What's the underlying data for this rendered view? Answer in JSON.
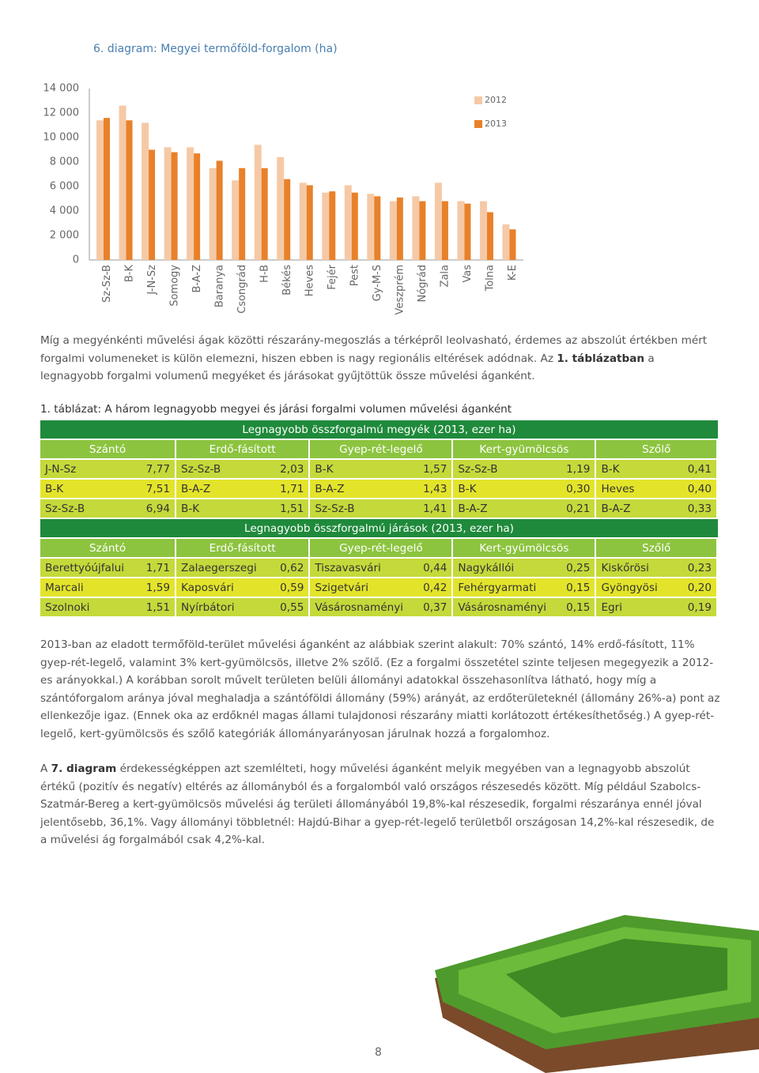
{
  "chart_data": {
    "type": "bar",
    "title": "6. diagram: Megyei termőföld-forgalom (ha)",
    "categories": [
      "Sz-Sz-B",
      "B-K",
      "J-N-Sz",
      "Somogy",
      "B-A-Z",
      "Baranya",
      "Csongrád",
      "H-B",
      "Békés",
      "Heves",
      "Fejér",
      "Pest",
      "Gy-M-S",
      "Veszprém",
      "Nógrád",
      "Zala",
      "Vas",
      "Tolna",
      "K-E"
    ],
    "series": [
      {
        "name": "2012",
        "color": "#f6c9a6",
        "values": [
          11400,
          12600,
          11200,
          9200,
          9200,
          7500,
          6500,
          9400,
          8400,
          6300,
          5500,
          6100,
          5400,
          4800,
          5200,
          6300,
          4800,
          4800,
          2900
        ]
      },
      {
        "name": "2013",
        "color": "#e8812a",
        "values": [
          11600,
          11400,
          9000,
          8800,
          8700,
          8100,
          7500,
          7500,
          6600,
          6100,
          5600,
          5500,
          5200,
          5100,
          4800,
          4800,
          4600,
          3900,
          2500
        ]
      }
    ],
    "ylim": [
      0,
      14000
    ],
    "yticks": [
      0,
      {
        "value": 2000,
        "label": "2 000"
      },
      {
        "value": 4000,
        "label": "4 000"
      },
      {
        "value": 6000,
        "label": "6 000"
      },
      {
        "value": 8000,
        "label": "8 000"
      },
      {
        "value": 10000,
        "label": "10 000"
      },
      {
        "value": 12000,
        "label": "12 000"
      },
      {
        "value": 14000,
        "label": "14 000"
      }
    ],
    "grid": false,
    "legend": "top-right"
  },
  "paragraphs": [
    {
      "text": "Míg a megyénkénti művelési ágak közötti részarány-megoszlás a térképről leolvasható, érdemes az abszolút értékben mért forgalmi volumeneket is külön elemezni, hiszen ebben is nagy regionális eltérések adódnak. Az ",
      "bold": "1. táblázatban",
      "rest": " a legnagyobb forgalmi volumenű megyéket és járásokat gyűjtöttük össze művelési áganként."
    },
    {
      "text": "2013-ban az eladott termőföld-terület művelési áganként az alábbiak szerint alakult: 70% szántó, 14% erdő-fásított, 11% gyep-rét-legelő, valamint 3% kert-gyümölcsös, illetve 2% szőlő. (Ez a forgalmi összetétel szinte teljesen megegyezik a 2012-es arányokkal.) A korábban sorolt művelt területen belüli állományi adatokkal összehasonlítva látható, hogy míg a szántóforgalom aránya jóval meghaladja a szántóföldi állomány (59%) arányát, az erdőterületeknél (állomány 26%-a) pont az ellenkezője igaz. (Ennek oka az erdőknél magas állami tulajdonosi részarány miatti korlátozott értékesíthetőség.) A gyep-rét-legelő, kert-gyümölcsös és szőlő kategóriák állományarányosan járulnak hozzá a forgalomhoz."
    },
    {
      "text": "A ",
      "bold": "7. diagram",
      "rest": " érdekességképpen azt szemlélteti, hogy művelési áganként melyik megyében van a legnagyobb abszolút értékű (pozitív és negatív) eltérés az állományból és a forgalomból való országos részesedés között. Míg például Szabolcs-Szatmár-Bereg a kert-gyümölcsös művelési ág területi állományából 19,8%-kal részesedik, forgalmi részaránya ennél jóval jelentősebb, 36,1%. Vagy állományi többletnél: Hajdú-Bihar a gyep-rét-legelő területből országosan 14,2%-kal részesedik, de a művelési ág forgalmából csak 4,2%-kal."
    }
  ],
  "table": {
    "caption": "1. táblázat: A három legnagyobb megyei és járási forgalmi volumen művelési áganként",
    "sections": [
      {
        "title": "Legnagyobb összforgalmú megyék (2013, ezer ha)",
        "headers": [
          "Szántó",
          "Erdő-fásított",
          "Gyep-rét-legelő",
          "Kert-gyümölcsös",
          "Szőlő"
        ],
        "rows": [
          [
            "J-N-Sz",
            "7,77",
            "Sz-Sz-B",
            "2,03",
            "B-K",
            "1,57",
            "Sz-Sz-B",
            "1,19",
            "B-K",
            "0,41"
          ],
          [
            "B-K",
            "7,51",
            "B-A-Z",
            "1,71",
            "B-A-Z",
            "1,43",
            "B-K",
            "0,30",
            "Heves",
            "0,40"
          ],
          [
            "Sz-Sz-B",
            "6,94",
            "B-K",
            "1,51",
            "Sz-Sz-B",
            "1,41",
            "B-A-Z",
            "0,21",
            "B-A-Z",
            "0,33"
          ]
        ]
      },
      {
        "title": "Legnagyobb összforgalmú járások (2013, ezer ha)",
        "headers": [
          "Szántó",
          "Erdő-fásított",
          "Gyep-rét-legelő",
          "Kert-gyümölcsös",
          "Szőlő"
        ],
        "rows": [
          [
            "Berettyóújfalui",
            "1,71",
            "Zalaegerszegi",
            "0,62",
            "Tiszavasvári",
            "0,44",
            "Nagykállói",
            "0,25",
            "Kiskőrösi",
            "0,23"
          ],
          [
            "Marcali",
            "1,59",
            "Kaposvári",
            "0,59",
            "Szigetvári",
            "0,42",
            "Fehérgyarmati",
            "0,15",
            "Gyöngyösi",
            "0,20"
          ],
          [
            "Szolnoki",
            "1,51",
            "Nyírbátori",
            "0,55",
            "Vásárosnaményi",
            "0,37",
            "Vásárosnaményi",
            "0,15",
            "Egri",
            "0,19"
          ]
        ]
      }
    ]
  },
  "page_number": "8"
}
